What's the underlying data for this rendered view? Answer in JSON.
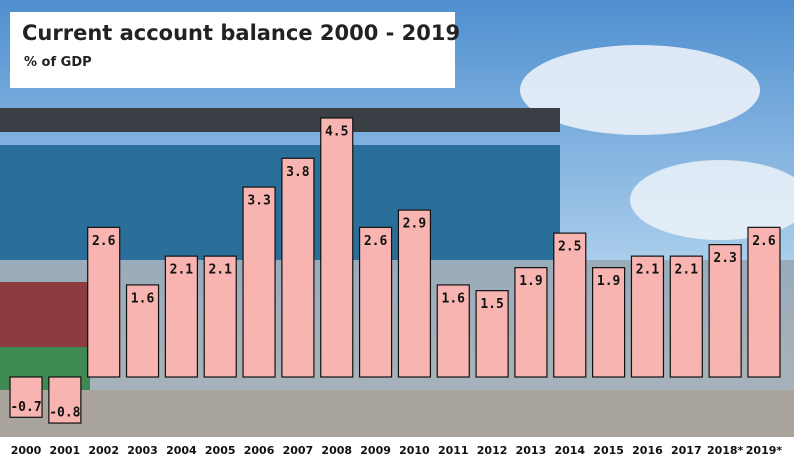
{
  "chart_data": {
    "type": "bar",
    "title": "Current account balance 2000 - 2019",
    "subtitle": "% of GDP",
    "categories": [
      "2000",
      "2001",
      "2002",
      "2003",
      "2004",
      "2005",
      "2006",
      "2007",
      "2008",
      "2009",
      "2010",
      "2011",
      "2012",
      "2013",
      "2014",
      "2015",
      "2016",
      "2017",
      "2018*",
      "2019*"
    ],
    "values": [
      -0.7,
      -0.8,
      2.6,
      1.6,
      2.1,
      2.1,
      3.3,
      3.8,
      4.5,
      2.6,
      2.9,
      1.6,
      1.5,
      1.9,
      2.5,
      1.9,
      2.1,
      2.1,
      2.3,
      2.6
    ],
    "color": "#f8b4b0"
  }
}
